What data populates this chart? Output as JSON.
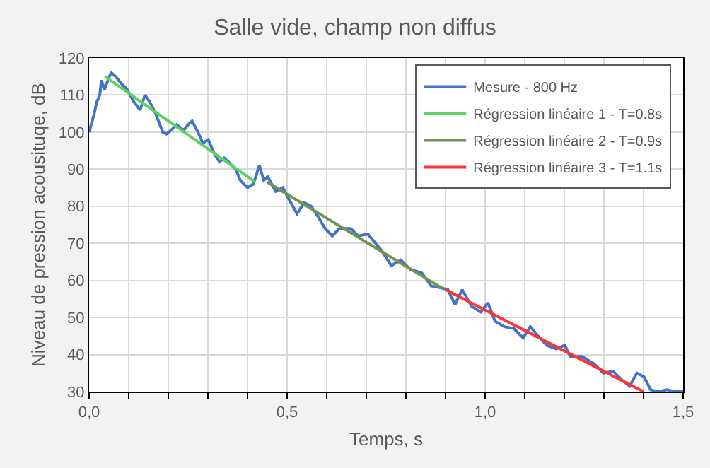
{
  "chart_data": {
    "type": "line",
    "title": "Salle vide, champ non diffus",
    "xlabel": "Temps, s",
    "ylabel": "Niveau de pression acousituqe, dB",
    "xlim": [
      0,
      1.5
    ],
    "xticks": [
      {
        "value": 0,
        "label": "0,0"
      },
      {
        "value": 0.1,
        "label": null
      },
      {
        "value": 0.2,
        "label": null
      },
      {
        "value": 0.3,
        "label": null
      },
      {
        "value": 0.4,
        "label": null
      },
      {
        "value": 0.5,
        "label": "0,5"
      },
      {
        "value": 0.6,
        "label": null
      },
      {
        "value": 0.7,
        "label": null
      },
      {
        "value": 0.8,
        "label": null
      },
      {
        "value": 0.9,
        "label": null
      },
      {
        "value": 1.0,
        "label": "1,0"
      },
      {
        "value": 1.1,
        "label": null
      },
      {
        "value": 1.2,
        "label": null
      },
      {
        "value": 1.3,
        "label": null
      },
      {
        "value": 1.4,
        "label": null
      },
      {
        "value": 1.5,
        "label": "1,5"
      }
    ],
    "ylim": [
      30,
      120
    ],
    "yticks": [
      30,
      40,
      50,
      60,
      70,
      80,
      90,
      100,
      110,
      120
    ],
    "grid": true,
    "legend": "top right",
    "marker": "none",
    "line_style": "solid",
    "series": [
      {
        "name": "Mesure - 800 Hz",
        "color": "#4472c4",
        "x": [
          0,
          0.013,
          0.019,
          0.027,
          0.031,
          0.039,
          0.051,
          0.056,
          0.067,
          0.082,
          0.096,
          0.114,
          0.129,
          0.141,
          0.154,
          0.168,
          0.186,
          0.195,
          0.207,
          0.221,
          0.239,
          0.25,
          0.26,
          0.275,
          0.287,
          0.301,
          0.317,
          0.329,
          0.341,
          0.352,
          0.37,
          0.382,
          0.4,
          0.415,
          0.43,
          0.441,
          0.451,
          0.471,
          0.489,
          0.504,
          0.525,
          0.543,
          0.561,
          0.579,
          0.596,
          0.614,
          0.632,
          0.65,
          0.661,
          0.679,
          0.704,
          0.739,
          0.763,
          0.787,
          0.811,
          0.84,
          0.864,
          0.888,
          0.906,
          0.924,
          0.942,
          0.966,
          0.989,
          1.007,
          1.025,
          1.049,
          1.073,
          1.096,
          1.114,
          1.138,
          1.156,
          1.18,
          1.201,
          1.215,
          1.245,
          1.275,
          1.299,
          1.323,
          1.347,
          1.365,
          1.383,
          1.401,
          1.418,
          1.436,
          1.46,
          1.478,
          1.5
        ],
        "values": [
          100,
          105,
          108,
          110,
          114,
          111.5,
          115,
          116,
          115,
          113,
          111.5,
          108,
          106,
          110,
          108,
          105,
          100,
          99.5,
          100.5,
          102,
          100.5,
          102,
          103,
          100,
          97,
          98,
          94,
          92,
          93,
          92,
          90,
          87,
          85,
          86,
          91,
          87,
          88,
          84,
          85,
          82,
          78,
          81,
          80,
          77,
          74,
          72,
          74,
          74,
          74,
          72,
          72.5,
          68,
          64,
          65.5,
          63,
          62,
          58.5,
          58,
          57.5,
          53.5,
          57.5,
          53,
          51.5,
          54,
          49,
          47.5,
          47,
          44.5,
          47.5,
          44.5,
          42.5,
          41.5,
          42.5,
          39.5,
          39.5,
          37.5,
          35,
          35.5,
          33,
          31.5,
          35,
          34,
          30.5,
          30,
          30.5,
          30,
          30
        ]
      },
      {
        "name": "Régression linéaire 1 - T=0.8s",
        "color": "#5ed25e",
        "x": [
          0.04,
          0.42
        ],
        "values": [
          115,
          86.5
        ]
      },
      {
        "name": "Régression linéaire 2 - T=0.9s",
        "color": "#70944f",
        "x": [
          0.45,
          0.89
        ],
        "values": [
          86.5,
          58
        ]
      },
      {
        "name": "Régression linéaire 3 - T=1.1s",
        "color": "#ff3333",
        "x": [
          0.9,
          1.4
        ],
        "values": [
          57.5,
          30
        ]
      }
    ]
  }
}
